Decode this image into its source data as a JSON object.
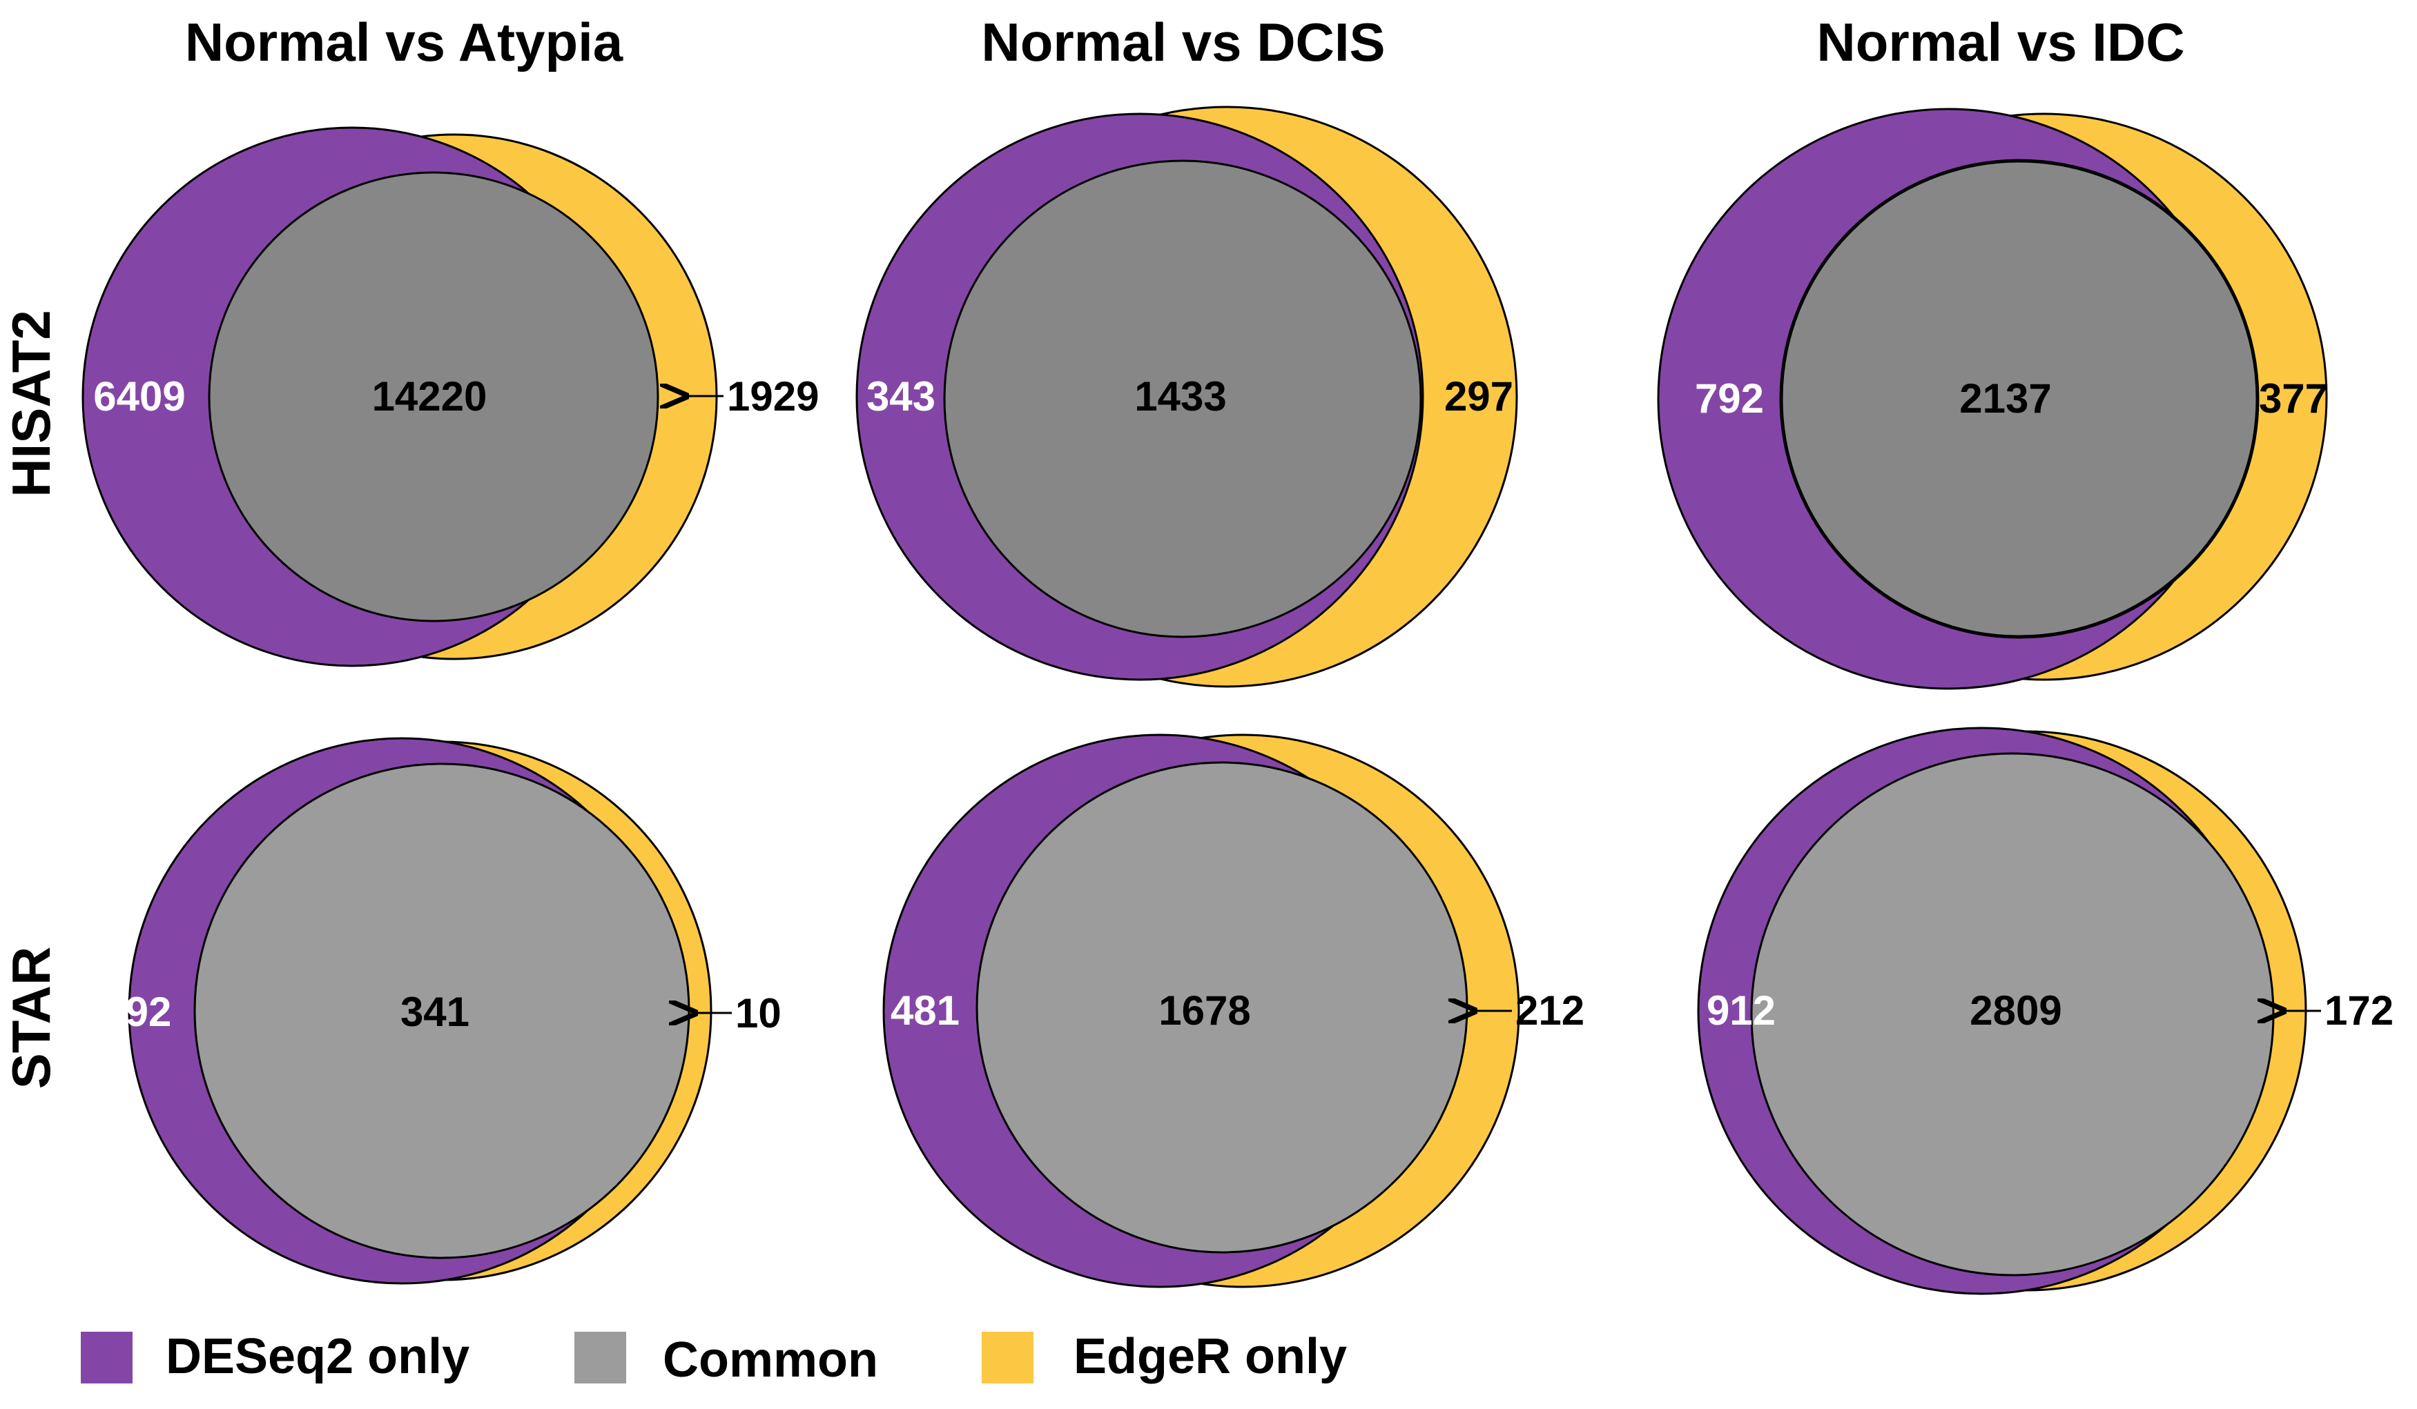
{
  "titles": [
    "Normal vs Atypia",
    "Normal vs DCIS",
    "Normal vs IDC"
  ],
  "rows": [
    "HISAT2",
    "STAR"
  ],
  "colors": {
    "deseq2": "#8446A6",
    "common": "#878787",
    "common_light": "#9C9C9C",
    "edger": "#FCC844",
    "stroke": "#000000"
  },
  "legend": {
    "deseq2": "DESeq2 only",
    "common": "Common",
    "edger": "EdgeR only"
  },
  "values": {
    "hisat2": {
      "atypia": {
        "deseq2": "6409",
        "common": "14220",
        "edger": "1929"
      },
      "dcis": {
        "deseq2": "343",
        "common": "1433",
        "edger": "297"
      },
      "idc": {
        "deseq2": "792",
        "common": "2137",
        "edger": "377"
      }
    },
    "star": {
      "atypia": {
        "deseq2": "92",
        "common": "341",
        "edger": "10"
      },
      "dcis": {
        "deseq2": "481",
        "common": "1678",
        "edger": "212"
      },
      "idc": {
        "deseq2": "912",
        "common": "2809",
        "edger": "172"
      }
    }
  }
}
